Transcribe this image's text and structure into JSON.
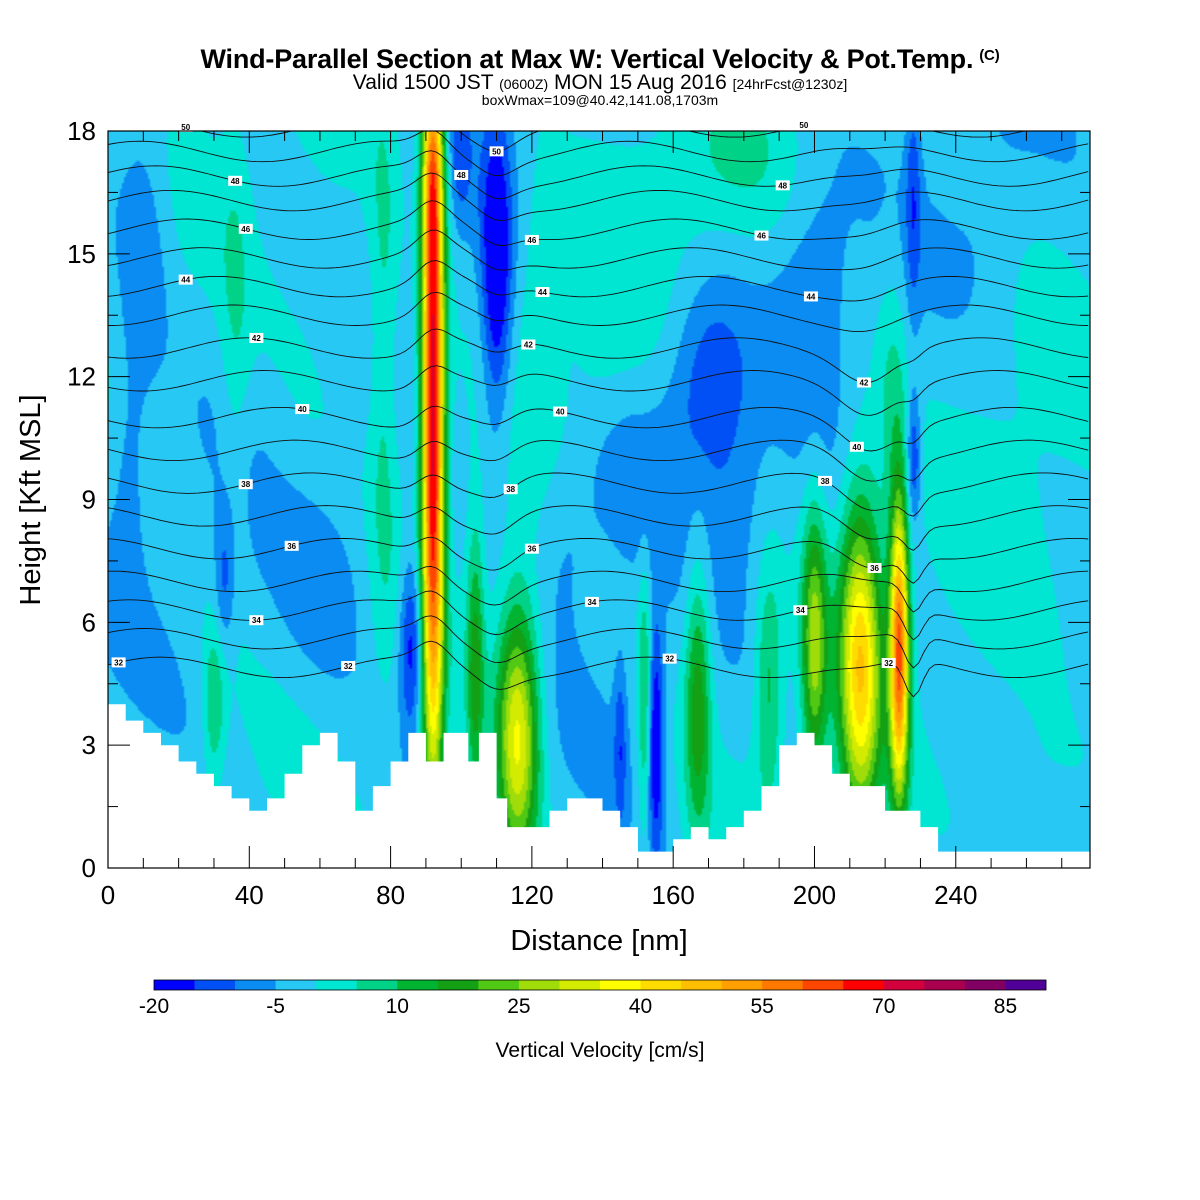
{
  "header": {
    "title": "Wind-Parallel Section at Max W: Vertical Velocity & Pot.Temp.",
    "title_suffix": "(C)",
    "valid_prefix": "Valid 1500 JST",
    "valid_utc": "(0600Z)",
    "valid_day": "MON 15 Aug 2016",
    "valid_fcst": "[24hrFcst@1230z]",
    "box_info": "boxWmax=109@40.42,141.08,1703m"
  },
  "chart_data": {
    "type": "heatmap",
    "xlabel": "Distance [nm]",
    "ylabel": "Height [Kft MSL]",
    "xlim": [
      0,
      278
    ],
    "ylim": [
      0,
      18
    ],
    "x_ticks": [
      0,
      40,
      80,
      120,
      160,
      200,
      240
    ],
    "y_ticks": [
      0,
      3,
      6,
      9,
      12,
      15,
      18
    ],
    "colorbar": {
      "title": "Vertical Velocity [cm/s]",
      "levels": [
        -20,
        -15,
        -10,
        -5,
        0,
        5,
        10,
        15,
        20,
        25,
        30,
        35,
        40,
        45,
        50,
        55,
        60,
        65,
        70,
        75,
        80,
        85,
        90
      ],
      "tick_labels": [
        "-20",
        "-5",
        "10",
        "25",
        "40",
        "55",
        "70",
        "85"
      ],
      "colors": [
        "#0000ff",
        "#0050f5",
        "#0a8cf2",
        "#28c8f5",
        "#00e6d2",
        "#00d287",
        "#00b432",
        "#14a014",
        "#50c814",
        "#a0dc0a",
        "#d2eb00",
        "#ffff00",
        "#ffdc00",
        "#ffbe00",
        "#ffa000",
        "#ff7800",
        "#ff4600",
        "#ff0000",
        "#d2003c",
        "#aa0050",
        "#820064",
        "#500096"
      ]
    },
    "background_value": -2,
    "updrafts": [
      {
        "x": 92,
        "z": 11,
        "sx": 2.2,
        "sz": 6.5,
        "w": 75
      },
      {
        "x": 92,
        "z": 17,
        "sx": 2.0,
        "sz": 1.6,
        "w": 20
      },
      {
        "x": 116,
        "z": 3.2,
        "sx": 4.2,
        "sz": 2.3,
        "w": 38
      },
      {
        "x": 104,
        "z": 5.0,
        "sx": 1.8,
        "sz": 2.5,
        "w": 18
      },
      {
        "x": 152,
        "z": 4.0,
        "sx": 1.4,
        "sz": 2.4,
        "w": 14
      },
      {
        "x": 167,
        "z": 4.2,
        "sx": 2.6,
        "sz": 2.4,
        "w": 20
      },
      {
        "x": 187,
        "z": 4.5,
        "sx": 2.8,
        "sz": 2.0,
        "w": 14
      },
      {
        "x": 200,
        "z": 5.5,
        "sx": 2.5,
        "sz": 2.3,
        "w": 28
      },
      {
        "x": 213,
        "z": 5.0,
        "sx": 4.2,
        "sz": 2.8,
        "w": 44
      },
      {
        "x": 224,
        "z": 5.3,
        "sx": 1.9,
        "sz": 2.5,
        "w": 62
      },
      {
        "x": 30,
        "z": 4.0,
        "sx": 2.2,
        "sz": 1.4,
        "w": 12
      },
      {
        "x": 36,
        "z": 13.0,
        "sx": 3.0,
        "sz": 3.5,
        "w": 6
      },
      {
        "x": 78,
        "z": 12.5,
        "sx": 3.0,
        "sz": 5.0,
        "w": 9
      },
      {
        "x": 170,
        "z": 17.0,
        "sx": 18.0,
        "sz": 1.5,
        "w": 6
      },
      {
        "x": 255,
        "z": 10.0,
        "sx": 14.0,
        "sz": 5.0,
        "w": 3
      },
      {
        "x": 140,
        "z": 12.5,
        "sx": 8.0,
        "sz": 2.0,
        "w": 4
      },
      {
        "x": 60,
        "z": 14.0,
        "sx": 10.0,
        "sz": 4.0,
        "w": 3
      },
      {
        "x": 222,
        "z": 11.5,
        "sx": 3.0,
        "sz": 2.5,
        "w": 7
      },
      {
        "x": 122,
        "z": 14.5,
        "sx": 5.0,
        "sz": 2.0,
        "w": 6
      },
      {
        "x": 260,
        "z": 2.0,
        "sx": 12.0,
        "sz": 1.2,
        "w": 4
      }
    ],
    "downdrafts": [
      {
        "x": 110,
        "z": 14.5,
        "sx": 3.0,
        "sz": 2.6,
        "w": -20
      },
      {
        "x": 86,
        "z": 5.5,
        "sx": 2.5,
        "sz": 1.5,
        "w": -18
      },
      {
        "x": 100,
        "z": 17.5,
        "sx": 2.0,
        "sz": 1.2,
        "w": -8
      },
      {
        "x": 155,
        "z": 3.2,
        "sx": 1.6,
        "sz": 2.0,
        "w": -20
      },
      {
        "x": 145,
        "z": 3.0,
        "sx": 1.2,
        "sz": 1.5,
        "w": -10
      },
      {
        "x": 170,
        "z": 11.8,
        "sx": 8.0,
        "sz": 1.7,
        "w": -13
      },
      {
        "x": 228,
        "z": 10.0,
        "sx": 1.5,
        "sz": 1.2,
        "w": -15
      },
      {
        "x": 228,
        "z": 16.5,
        "sx": 1.5,
        "sz": 2.0,
        "w": -10
      },
      {
        "x": 33,
        "z": 7.0,
        "sx": 2.0,
        "sz": 1.2,
        "w": -10
      },
      {
        "x": 10,
        "z": 15.5,
        "sx": 5.0,
        "sz": 2.5,
        "w": -7
      },
      {
        "x": 6,
        "z": 10.0,
        "sx": 4.0,
        "sz": 2.0,
        "w": -6
      },
      {
        "x": 146,
        "z": 9.5,
        "sx": 9.0,
        "sz": 1.6,
        "w": -6
      },
      {
        "x": 62,
        "z": 7.0,
        "sx": 10.0,
        "sz": 2.0,
        "w": -6
      },
      {
        "x": 200,
        "z": 15.0,
        "sx": 8.0,
        "sz": 2.2,
        "w": -7
      },
      {
        "x": 250,
        "z": 16.0,
        "sx": 8.0,
        "sz": 2.0,
        "w": -4
      },
      {
        "x": 130,
        "z": 8.0,
        "sx": 6.0,
        "sz": 1.5,
        "w": -5
      },
      {
        "x": 178,
        "z": 9.0,
        "sx": 6.0,
        "sz": 1.5,
        "w": -4
      }
    ],
    "terrain": [
      [
        0,
        4.0
      ],
      [
        5,
        4.0
      ],
      [
        5,
        3.6
      ],
      [
        10,
        3.6
      ],
      [
        10,
        3.3
      ],
      [
        15,
        3.3
      ],
      [
        15,
        3.0
      ],
      [
        20,
        3.0
      ],
      [
        20,
        2.6
      ],
      [
        25,
        2.6
      ],
      [
        25,
        2.3
      ],
      [
        30,
        2.3
      ],
      [
        30,
        2.0
      ],
      [
        35,
        2.0
      ],
      [
        35,
        1.7
      ],
      [
        40,
        1.7
      ],
      [
        40,
        1.4
      ],
      [
        45,
        1.4
      ],
      [
        45,
        1.7
      ],
      [
        50,
        1.7
      ],
      [
        50,
        2.3
      ],
      [
        55,
        2.3
      ],
      [
        55,
        3.0
      ],
      [
        60,
        3.0
      ],
      [
        60,
        3.3
      ],
      [
        65,
        3.3
      ],
      [
        65,
        2.6
      ],
      [
        70,
        2.6
      ],
      [
        70,
        1.4
      ],
      [
        75,
        1.4
      ],
      [
        75,
        2.0
      ],
      [
        80,
        2.0
      ],
      [
        80,
        2.6
      ],
      [
        85,
        2.6
      ],
      [
        85,
        3.3
      ],
      [
        90,
        3.3
      ],
      [
        90,
        2.6
      ],
      [
        95,
        2.6
      ],
      [
        95,
        3.3
      ],
      [
        102,
        3.3
      ],
      [
        102,
        2.6
      ],
      [
        105,
        2.6
      ],
      [
        105,
        3.3
      ],
      [
        110,
        3.3
      ],
      [
        110,
        1.7
      ],
      [
        113,
        1.7
      ],
      [
        113,
        1.0
      ],
      [
        125,
        1.0
      ],
      [
        125,
        1.4
      ],
      [
        130,
        1.4
      ],
      [
        130,
        1.7
      ],
      [
        140,
        1.7
      ],
      [
        140,
        1.4
      ],
      [
        145,
        1.4
      ],
      [
        145,
        1.0
      ],
      [
        150,
        1.0
      ],
      [
        150,
        0.4
      ],
      [
        160,
        0.4
      ],
      [
        160,
        0.7
      ],
      [
        165,
        0.7
      ],
      [
        165,
        1.0
      ],
      [
        170,
        1.0
      ],
      [
        170,
        0.7
      ],
      [
        175,
        0.7
      ],
      [
        175,
        1.0
      ],
      [
        180,
        1.0
      ],
      [
        180,
        1.4
      ],
      [
        185,
        1.4
      ],
      [
        185,
        2.0
      ],
      [
        190,
        2.0
      ],
      [
        190,
        3.0
      ],
      [
        195,
        3.0
      ],
      [
        195,
        3.3
      ],
      [
        200,
        3.3
      ],
      [
        200,
        3.0
      ],
      [
        205,
        3.0
      ],
      [
        205,
        2.3
      ],
      [
        210,
        2.3
      ],
      [
        210,
        2.0
      ],
      [
        220,
        2.0
      ],
      [
        220,
        1.4
      ],
      [
        230,
        1.4
      ],
      [
        230,
        1.0
      ],
      [
        235,
        1.0
      ],
      [
        235,
        0.4
      ],
      [
        278,
        0.4
      ]
    ],
    "theta_contours": {
      "levels": [
        32,
        33,
        34,
        35,
        36,
        37,
        38,
        39,
        40,
        41,
        42,
        43,
        44,
        45,
        46,
        47,
        48,
        49,
        50
      ],
      "base_height": [
        4.9,
        5.6,
        6.3,
        7.0,
        7.8,
        8.6,
        9.4,
        10.2,
        11.0,
        11.9,
        12.7,
        13.5,
        14.2,
        14.9,
        15.6,
        16.3,
        16.9,
        17.5,
        18.1
      ],
      "labels": [
        {
          "text": "32",
          "x": 3,
          "level": 32
        },
        {
          "text": "32",
          "x": 68,
          "level": 32
        },
        {
          "text": "32",
          "x": 159,
          "level": 32
        },
        {
          "text": "32",
          "x": 221,
          "level": 32
        },
        {
          "text": "34",
          "x": 42,
          "level": 34
        },
        {
          "text": "34",
          "x": 137,
          "level": 34
        },
        {
          "text": "34",
          "x": 196,
          "level": 34
        },
        {
          "text": "36",
          "x": 52,
          "level": 36
        },
        {
          "text": "36",
          "x": 120,
          "level": 36
        },
        {
          "text": "36",
          "x": 217,
          "level": 36
        },
        {
          "text": "38",
          "x": 39,
          "level": 38
        },
        {
          "text": "38",
          "x": 114,
          "level": 38
        },
        {
          "text": "38",
          "x": 203,
          "level": 38
        },
        {
          "text": "40",
          "x": 55,
          "level": 40
        },
        {
          "text": "40",
          "x": 128,
          "level": 40
        },
        {
          "text": "40",
          "x": 212,
          "level": 40
        },
        {
          "text": "42",
          "x": 42,
          "level": 42
        },
        {
          "text": "42",
          "x": 119,
          "level": 42
        },
        {
          "text": "42",
          "x": 214,
          "level": 42
        },
        {
          "text": "44",
          "x": 22,
          "level": 44
        },
        {
          "text": "44",
          "x": 123,
          "level": 44
        },
        {
          "text": "44",
          "x": 199,
          "level": 44
        },
        {
          "text": "46",
          "x": 39,
          "level": 46
        },
        {
          "text": "46",
          "x": 185,
          "level": 46
        },
        {
          "text": "46",
          "x": 120,
          "level": 46
        },
        {
          "text": "48",
          "x": 36,
          "level": 48
        },
        {
          "text": "48",
          "x": 100,
          "level": 48
        },
        {
          "text": "48",
          "x": 191,
          "level": 48
        },
        {
          "text": "50",
          "x": 22,
          "level": 50
        },
        {
          "text": "50",
          "x": 110,
          "level": 50
        },
        {
          "text": "50",
          "x": 197,
          "level": 50
        }
      ]
    }
  }
}
